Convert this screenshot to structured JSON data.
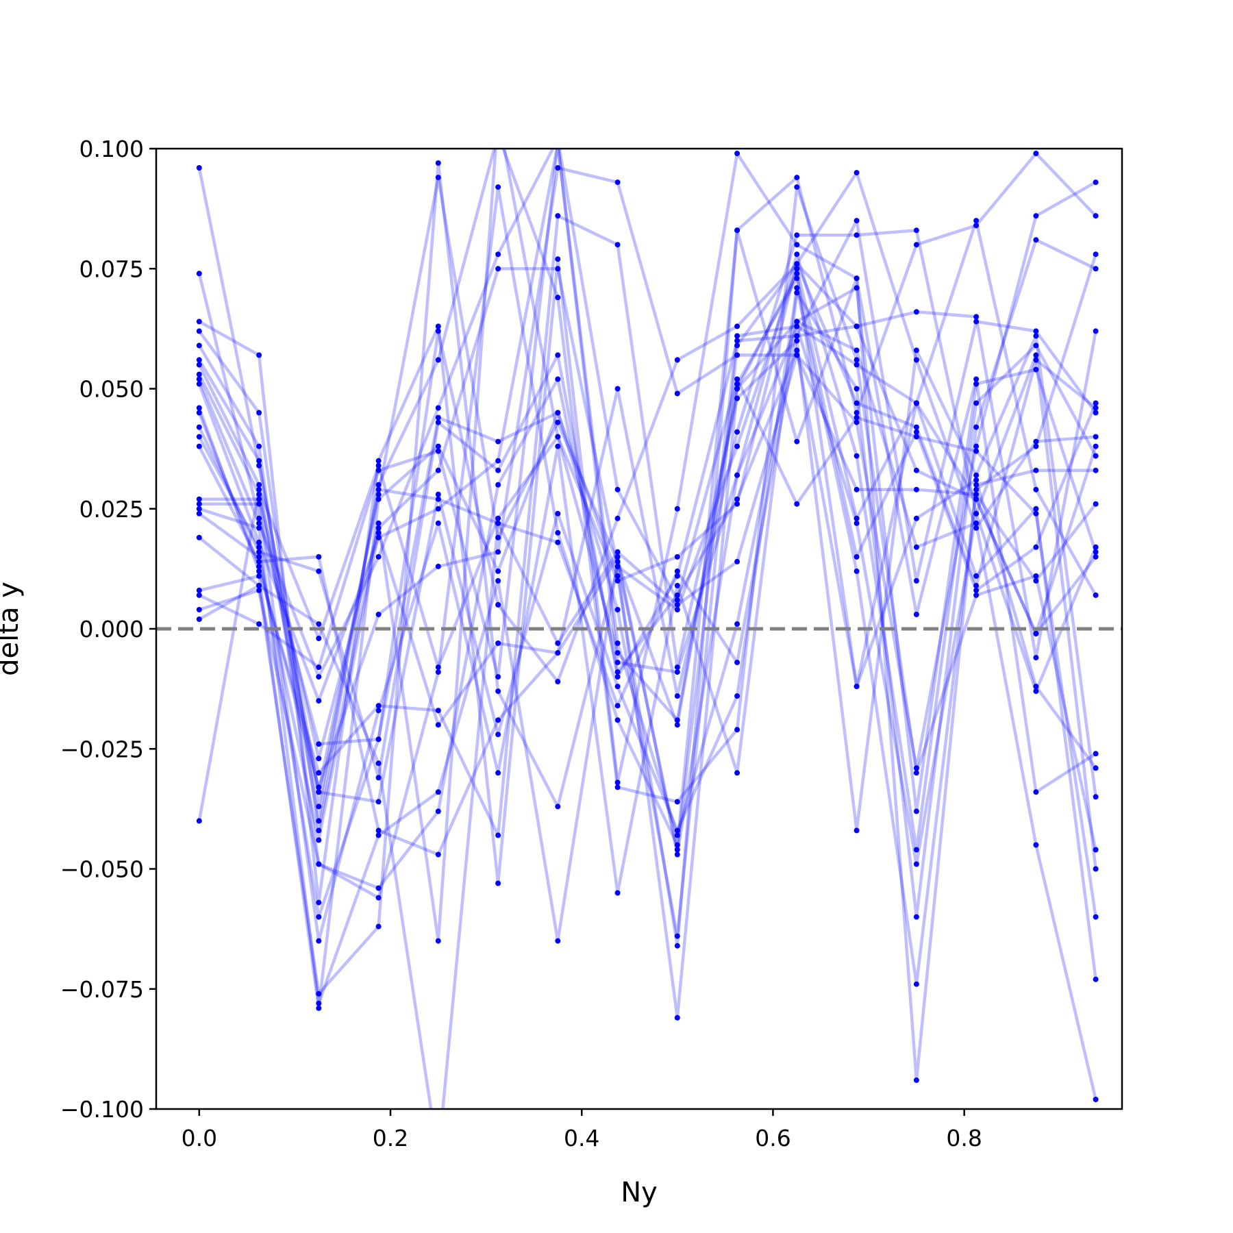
{
  "chart_data": {
    "type": "line",
    "title": "",
    "xlabel": "Ny",
    "ylabel": "delta y",
    "xlim": [
      -0.045,
      0.965
    ],
    "ylim": [
      -0.1,
      0.1
    ],
    "xticks": [
      0.0,
      0.2,
      0.4,
      0.6,
      0.8
    ],
    "xtick_labels": [
      "0.0",
      "0.2",
      "0.4",
      "0.6",
      "0.8"
    ],
    "yticks": [
      -0.1,
      -0.075,
      -0.05,
      -0.025,
      0.0,
      0.025,
      0.05,
      0.075,
      0.1
    ],
    "ytick_labels": [
      "−0.100",
      "−0.075",
      "−0.050",
      "−0.025",
      "0.000",
      "0.025",
      "0.050",
      "0.075",
      "0.100"
    ],
    "grid": false,
    "reference_line": {
      "y": 0.0,
      "style": "dashed",
      "color": "#808080"
    },
    "series_color": "#0000ff",
    "line_alpha": 0.25,
    "x": [
      0.0,
      0.0625,
      0.125,
      0.1875,
      0.25,
      0.3125,
      0.375,
      0.4375,
      0.5,
      0.5625,
      0.625,
      0.6875,
      0.75,
      0.8125,
      0.875,
      0.9375
    ],
    "series": [
      {
        "values": [
          0.096,
          0.034,
          -0.034,
          0.028,
          0.094,
          0.019,
          0.043,
          0.014,
          -0.046,
          0.061,
          0.063,
          0.055,
          0.047,
          0.027,
          -0.001,
          0.038
        ]
      },
      {
        "values": [
          0.074,
          0.023,
          -0.024,
          -0.023,
          0.044,
          0.039,
          0.045,
          0.004,
          -0.064,
          0.059,
          0.076,
          0.047,
          0.042,
          0.009,
          0.056,
          0.046
        ]
      },
      {
        "values": [
          0.064,
          0.057,
          -0.057,
          0.035,
          0.063,
          -0.053,
          0.077,
          -0.032,
          0.025,
          0.099,
          0.08,
          0.073,
          0.003,
          0.052,
          -0.034,
          -0.026
        ]
      },
      {
        "values": [
          0.062,
          0.045,
          -0.042,
          0.022,
          -0.065,
          0.107,
          0.04,
          0.01,
          0.015,
          0.026,
          0.076,
          0.063,
          0.066,
          0.065,
          -0.006,
          0.062
        ]
      },
      {
        "values": [
          0.059,
          0.038,
          -0.049,
          -0.056,
          -0.009,
          0.092,
          0.02,
          -0.019,
          -0.045,
          0.083,
          0.094,
          0.045,
          0.08,
          0.084,
          0.099,
          0.086
        ]
      },
      {
        "values": [
          0.056,
          0.035,
          -0.037,
          0.029,
          0.027,
          0.022,
          -0.003,
          0.016,
          0.005,
          0.014,
          0.057,
          0.043,
          -0.029,
          0.038,
          0.086,
          0.093
        ]
      },
      {
        "values": [
          0.055,
          0.03,
          -0.04,
          0.03,
          0.056,
          0.103,
          0.069,
          -0.033,
          -0.036,
          -0.021,
          0.092,
          0.056,
          -0.03,
          0.007,
          0.011,
          -0.046
        ]
      },
      {
        "values": [
          0.053,
          0.028,
          -0.027,
          0.021,
          0.033,
          0.075,
          0.075,
          0.013,
          -0.081,
          0.05,
          0.064,
          0.071,
          -0.038,
          0.051,
          0.054,
          0.016
        ]
      },
      {
        "values": [
          0.052,
          0.022,
          -0.01,
          0.015,
          0.046,
          0.078,
          0.102,
          0.029,
          0.006,
          0.052,
          0.026,
          0.044,
          0.04,
          0.037,
          0.024,
          -0.06
        ]
      },
      {
        "values": [
          0.051,
          0.018,
          -0.015,
          0.019,
          0.025,
          0.035,
          0.101,
          -0.007,
          -0.009,
          0.032,
          0.078,
          0.036,
          -0.046,
          0.047,
          0.059,
          0.036
        ]
      },
      {
        "values": [
          0.046,
          0.012,
          -0.03,
          -0.016,
          -0.017,
          -0.043,
          0.086,
          0.08,
          -0.008,
          0.048,
          0.06,
          -0.042,
          0.058,
          0.032,
          0.061,
          -0.035
        ]
      },
      {
        "values": [
          0.045,
          0.013,
          -0.033,
          0.003,
          0.013,
          0.016,
          0.096,
          0.093,
          0.049,
          0.057,
          0.057,
          0.029,
          0.029,
          0.028,
          0.01,
          0.026
        ]
      },
      {
        "values": [
          0.042,
          0.016,
          0.012,
          -0.031,
          0.043,
          0.033,
          0.057,
          -0.01,
          0.011,
          0.06,
          0.061,
          0.085,
          0.01,
          0.064,
          0.062,
          0.045
        ]
      },
      {
        "values": [
          0.04,
          0.017,
          -0.06,
          -0.023,
          0.062,
          0.005,
          -0.011,
          0.023,
          0.056,
          0.063,
          0.076,
          0.095,
          0.056,
          0.021,
          0.039,
          0.04
        ]
      },
      {
        "values": [
          0.038,
          0.014,
          0.015,
          -0.042,
          -0.047,
          -0.019,
          -0.005,
          0.05,
          -0.014,
          0.041,
          0.082,
          0.082,
          0.083,
          0.024,
          -0.013,
          0.017
        ]
      },
      {
        "values": [
          0.027,
          0.027,
          -0.034,
          -0.036,
          0.028,
          -0.022,
          0.024,
          -0.012,
          -0.042,
          -0.014,
          0.071,
          0.012,
          -0.074,
          0.029,
          0.038,
          0.078
        ]
      },
      {
        "values": [
          0.026,
          0.026,
          -0.065,
          -0.017,
          0.022,
          -0.03,
          0.038,
          -0.055,
          0.009,
          -0.03,
          0.07,
          0.05,
          -0.06,
          0.042,
          0.081,
          0.075
        ]
      },
      {
        "values": [
          0.025,
          0.021,
          -0.078,
          -0.043,
          -0.034,
          0.01,
          -0.065,
          0.014,
          -0.02,
          0.05,
          0.074,
          -0.012,
          0.023,
          0.031,
          -0.012,
          -0.029
        ]
      },
      {
        "values": [
          0.024,
          0.015,
          -0.044,
          0.02,
          -0.02,
          -0.003,
          -0.005,
          0.015,
          -0.047,
          0.032,
          0.063,
          0.022,
          -0.049,
          0.024,
          0.057,
          -0.05
        ]
      },
      {
        "values": [
          0.019,
          0.009,
          -0.076,
          -0.062,
          0.097,
          -0.013,
          -0.037,
          0.013,
          0.004,
          0.038,
          0.075,
          0.023,
          0.047,
          0.011,
          0.025,
          -0.073
        ]
      },
      {
        "values": [
          0.008,
          0.011,
          -0.079,
          0.027,
          0.038,
          0.012,
          0.045,
          0.011,
          -0.066,
          0.083,
          0.039,
          0.073,
          -0.094,
          0.03,
          0.033,
          0.033
        ]
      },
      {
        "values": [
          0.007,
          0.001,
          -0.008,
          0.033,
          0.037,
          -0.01,
          0.101,
          -0.003,
          -0.043,
          0.001,
          0.064,
          0.058,
          0.017,
          0.022,
          -0.045,
          -0.098
        ]
      },
      {
        "values": [
          0.004,
          0.008,
          -0.049,
          -0.054,
          -0.038,
          0.03,
          0.052,
          -0.009,
          0.007,
          0.027,
          0.058,
          -0.012,
          0.047,
          0.085,
          0.029,
          0.007
        ]
      },
      {
        "values": [
          0.002,
          0.009,
          0.001,
          -0.028,
          -0.11,
          0.022,
          0.018,
          -0.016,
          0.012,
          -0.007,
          0.061,
          0.063,
          0.033,
          0.027,
          -0.001,
          0.015
        ]
      },
      {
        "values": [
          -0.04,
          0.029,
          -0.002,
          0.034,
          -0.008,
          0.023,
          0.04,
          -0.005,
          -0.019,
          0.051,
          0.073,
          0.015,
          0.041,
          0.008,
          0.017,
          0.047
        ]
      }
    ]
  }
}
